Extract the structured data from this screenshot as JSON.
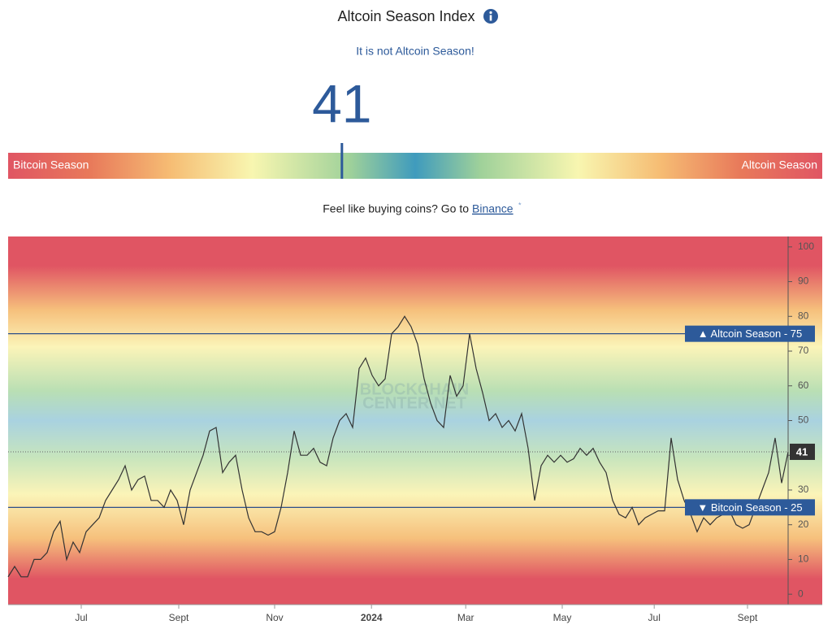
{
  "header": {
    "title": "Altcoin Season Index",
    "status": "It is not Altcoin Season!"
  },
  "gauge": {
    "value": 41,
    "range": [
      0,
      100
    ],
    "min_label": "Bitcoin Season",
    "max_label": "Altcoin Season"
  },
  "promo": {
    "text": "Feel like buying coins? Go to",
    "link": "Binance",
    "mark": "*"
  },
  "chart_data": {
    "type": "line",
    "color": "#333333",
    "values": [
      5,
      8,
      5,
      5,
      10,
      10,
      12,
      18,
      21,
      10,
      15,
      12,
      18,
      20,
      22,
      27,
      30,
      33,
      37,
      30,
      33,
      34,
      27,
      27,
      25,
      30,
      27,
      20,
      30,
      35,
      40,
      47,
      48,
      35,
      38,
      40,
      30,
      22,
      18,
      18,
      17,
      18,
      25,
      35,
      47,
      40,
      40,
      42,
      38,
      37,
      45,
      50,
      52,
      48,
      65,
      68,
      63,
      60,
      62,
      75,
      77,
      80,
      77,
      72,
      62,
      55,
      50,
      48,
      63,
      57,
      60,
      75,
      65,
      58,
      50,
      52,
      48,
      50,
      47,
      52,
      42,
      27,
      37,
      40,
      38,
      40,
      38,
      39,
      42,
      40,
      42,
      38,
      35,
      27,
      23,
      22,
      25,
      20,
      22,
      23,
      24,
      24,
      45,
      33,
      27,
      23,
      18,
      22,
      20,
      22,
      23,
      24,
      20,
      19,
      20,
      25,
      30,
      35,
      45,
      32,
      41
    ],
    "xlim": [
      0,
      120
    ],
    "xticks": [
      {
        "value": 11.25,
        "label": "Jul"
      },
      {
        "value": 26.25,
        "label": "Sept"
      },
      {
        "value": 41,
        "label": "Nov"
      },
      {
        "value": 55.9,
        "label": "2024"
      },
      {
        "value": 70.4,
        "label": "Mar"
      },
      {
        "value": 85.25,
        "label": "May"
      },
      {
        "value": 99.4,
        "label": "Jul"
      },
      {
        "value": 113.75,
        "label": "Sept"
      }
    ],
    "ylim": [
      -3,
      103
    ],
    "yticks": [
      0,
      10,
      20,
      30,
      40,
      50,
      60,
      70,
      80,
      90,
      100
    ],
    "thresholds": [
      {
        "value": 75,
        "label": "▲ Altcoin Season - 75"
      },
      {
        "value": 25,
        "label": "▼ Bitcoin Season - 25"
      }
    ],
    "current_value": 41,
    "watermark": [
      "BLOCKCHAIN",
      "CENTER.NET"
    ]
  }
}
